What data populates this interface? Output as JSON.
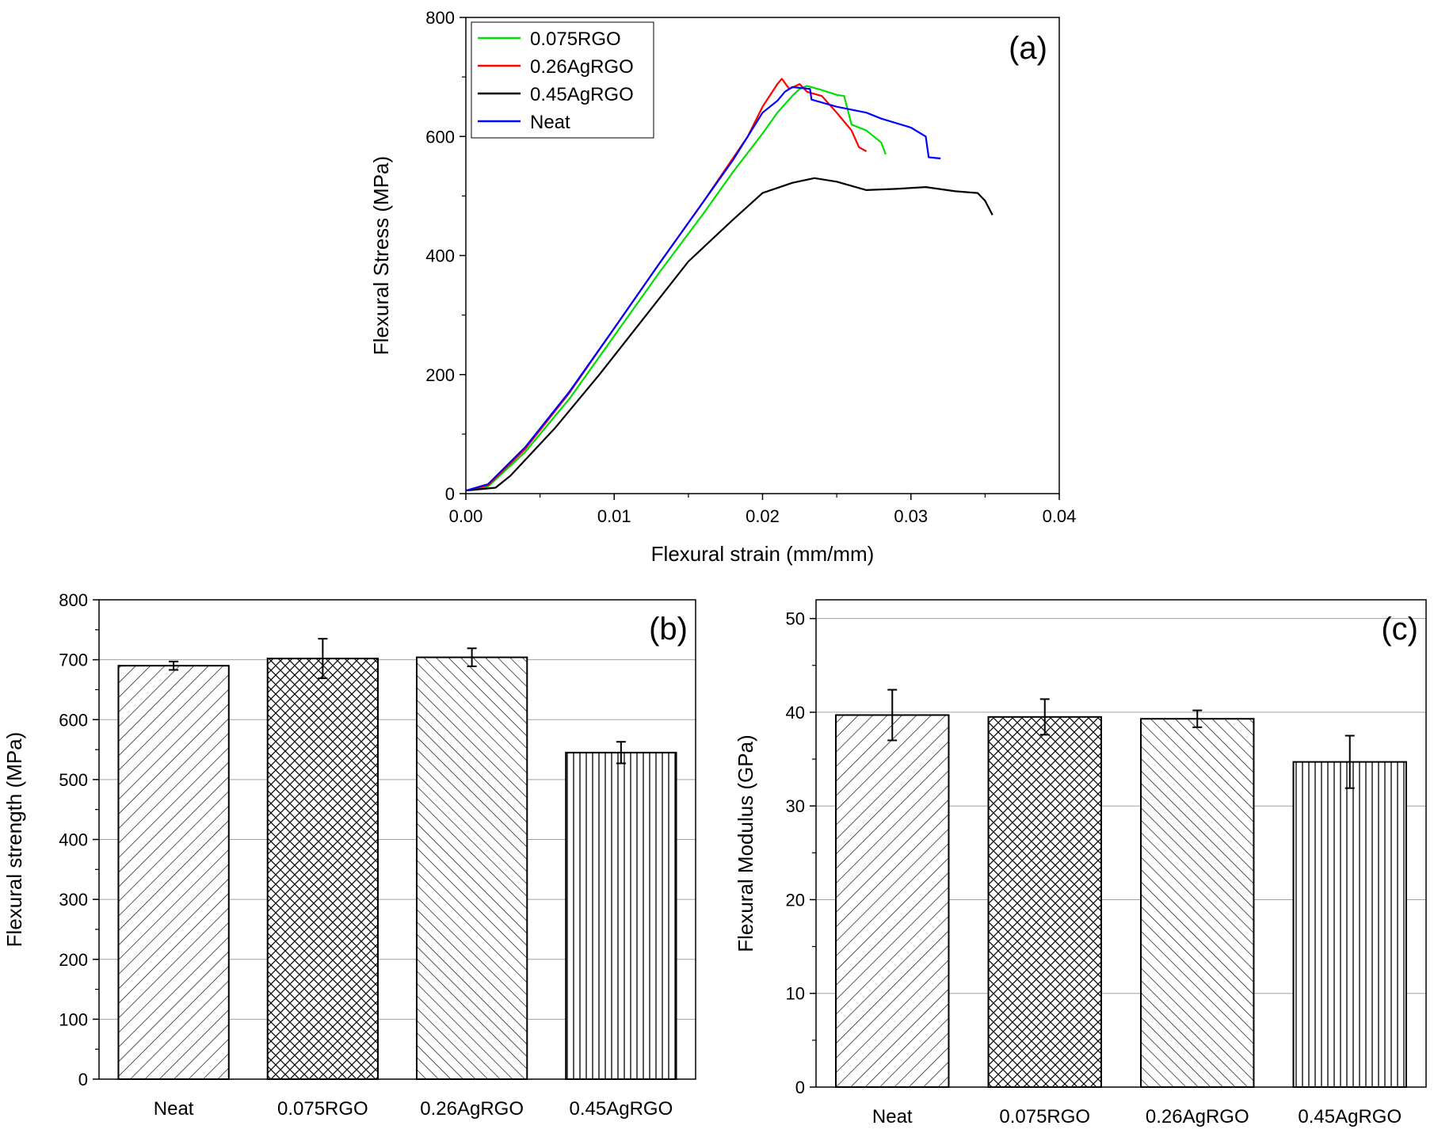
{
  "chart_data": [
    {
      "type": "line",
      "panel_label": "(a)",
      "xlabel": "Flexural strain (mm/mm)",
      "ylabel": "Flexural Stress (MPa)",
      "xlim": [
        0,
        0.04
      ],
      "ylim": [
        0,
        800
      ],
      "x_ticks": [
        "0.00",
        "0.01",
        "0.02",
        "0.03",
        "0.04"
      ],
      "y_ticks": [
        "0",
        "200",
        "400",
        "600",
        "800"
      ],
      "legend_position": "top-left",
      "series": [
        {
          "name": "0.075RGO",
          "color": "#00e000",
          "points": [
            [
              0,
              5
            ],
            [
              0.0015,
              12
            ],
            [
              0.004,
              70
            ],
            [
              0.007,
              160
            ],
            [
              0.01,
              265
            ],
            [
              0.013,
              370
            ],
            [
              0.016,
              470
            ],
            [
              0.018,
              540
            ],
            [
              0.02,
              605
            ],
            [
              0.021,
              640
            ],
            [
              0.022,
              668
            ],
            [
              0.0225,
              680
            ],
            [
              0.023,
              685
            ],
            [
              0.024,
              678
            ],
            [
              0.025,
              670
            ],
            [
              0.0255,
              668
            ],
            [
              0.026,
              620
            ],
            [
              0.027,
              610
            ],
            [
              0.028,
              590
            ],
            [
              0.0283,
              570
            ]
          ]
        },
        {
          "name": "0.26AgRGO",
          "color": "#ff0000",
          "points": [
            [
              0,
              5
            ],
            [
              0.0015,
              14
            ],
            [
              0.004,
              75
            ],
            [
              0.007,
              170
            ],
            [
              0.01,
              278
            ],
            [
              0.013,
              385
            ],
            [
              0.016,
              490
            ],
            [
              0.019,
              600
            ],
            [
              0.02,
              650
            ],
            [
              0.021,
              688
            ],
            [
              0.0213,
              697
            ],
            [
              0.0218,
              680
            ],
            [
              0.0225,
              688
            ],
            [
              0.023,
              675
            ],
            [
              0.024,
              668
            ],
            [
              0.025,
              640
            ],
            [
              0.0255,
              625
            ],
            [
              0.026,
              610
            ],
            [
              0.0265,
              582
            ],
            [
              0.027,
              575
            ]
          ]
        },
        {
          "name": "0.45AgRGO",
          "color": "#000000",
          "points": [
            [
              0,
              5
            ],
            [
              0.002,
              10
            ],
            [
              0.003,
              30
            ],
            [
              0.006,
              110
            ],
            [
              0.009,
              200
            ],
            [
              0.012,
              295
            ],
            [
              0.015,
              390
            ],
            [
              0.018,
              460
            ],
            [
              0.02,
              505
            ],
            [
              0.022,
              522
            ],
            [
              0.0235,
              530
            ],
            [
              0.025,
              524
            ],
            [
              0.027,
              510
            ],
            [
              0.029,
              512
            ],
            [
              0.031,
              515
            ],
            [
              0.033,
              508
            ],
            [
              0.0345,
              505
            ],
            [
              0.035,
              492
            ],
            [
              0.0355,
              468
            ]
          ]
        },
        {
          "name": "Neat",
          "color": "#0000ff",
          "points": [
            [
              0,
              5
            ],
            [
              0.0015,
              16
            ],
            [
              0.004,
              78
            ],
            [
              0.007,
              172
            ],
            [
              0.01,
              278
            ],
            [
              0.013,
              385
            ],
            [
              0.016,
              490
            ],
            [
              0.018,
              560
            ],
            [
              0.019,
              600
            ],
            [
              0.02,
              640
            ],
            [
              0.021,
              660
            ],
            [
              0.0215,
              675
            ],
            [
              0.022,
              683
            ],
            [
              0.0232,
              680
            ],
            [
              0.0233,
              662
            ],
            [
              0.025,
              650
            ],
            [
              0.027,
              640
            ],
            [
              0.028,
              630
            ],
            [
              0.03,
              615
            ],
            [
              0.031,
              600
            ],
            [
              0.0312,
              565
            ],
            [
              0.032,
              563
            ]
          ]
        }
      ]
    },
    {
      "type": "bar",
      "panel_label": "(b)",
      "xlabel": "",
      "ylabel": "Flexural strength (MPa)",
      "ylim": [
        0,
        800
      ],
      "y_ticks": [
        "0",
        "100",
        "200",
        "300",
        "400",
        "500",
        "600",
        "700",
        "800"
      ],
      "grid": true,
      "categories": [
        "Neat",
        "0.075RGO",
        "0.26AgRGO",
        "0.45AgRGO"
      ],
      "values": [
        690,
        702,
        704,
        545
      ],
      "errors": [
        7,
        33,
        15,
        18
      ],
      "patterns": [
        "diag-right",
        "crosshatch",
        "diag-left",
        "vertical"
      ]
    },
    {
      "type": "bar",
      "panel_label": "(c)",
      "xlabel": "",
      "ylabel": "Flexural Modulus (GPa)",
      "ylim": [
        0,
        52
      ],
      "y_ticks": [
        "0",
        "10",
        "20",
        "30",
        "40",
        "50"
      ],
      "grid": true,
      "categories": [
        "Neat",
        "0.075RGO",
        "0.26AgRGO",
        "0.45AgRGO"
      ],
      "values": [
        39.7,
        39.5,
        39.3,
        34.7
      ],
      "errors": [
        2.7,
        1.9,
        0.9,
        2.8
      ],
      "patterns": [
        "diag-right",
        "crosshatch",
        "diag-left",
        "vertical"
      ]
    }
  ]
}
